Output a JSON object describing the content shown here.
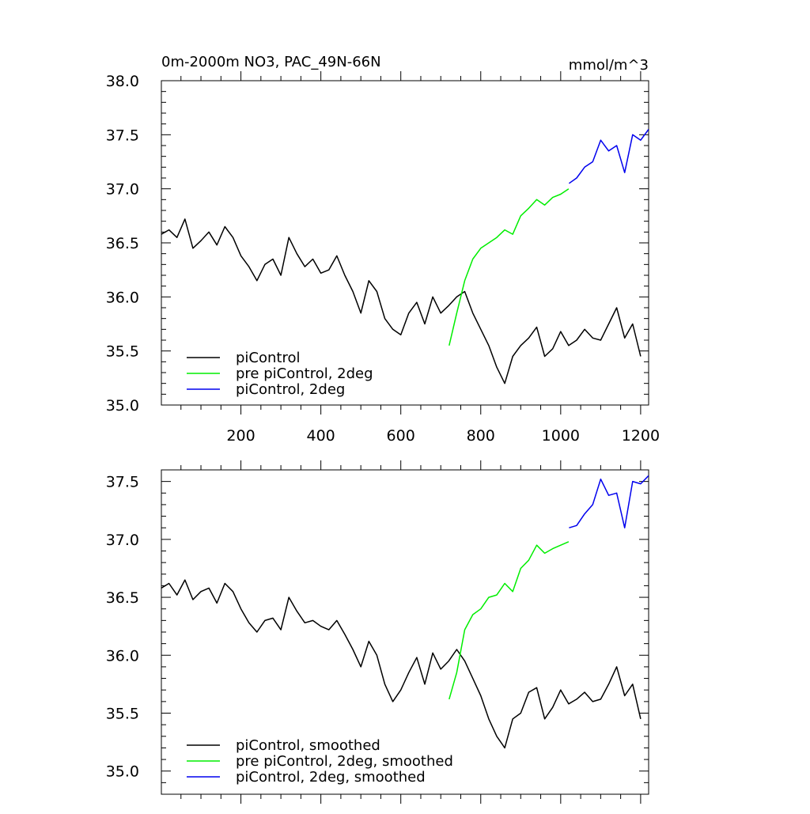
{
  "chart_data": [
    {
      "type": "line",
      "title": "0m-2000m NO3, PAC_49N-66N",
      "units": "mmol/m^3",
      "xlabel": "",
      "ylabel": "",
      "xlim": [
        1,
        1220
      ],
      "ylim": [
        35.0,
        38.0
      ],
      "xticks": [
        200,
        400,
        600,
        800,
        1000,
        1200
      ],
      "xtick_labels": [
        "200",
        "400",
        "600",
        "800",
        "1000",
        "1200"
      ],
      "yticks": [
        35.0,
        35.5,
        36.0,
        36.5,
        37.0,
        37.5,
        38.0
      ],
      "ytick_labels": [
        "35.0",
        "35.5",
        "36.0",
        "36.5",
        "37.0",
        "37.5",
        "38.0"
      ],
      "grid": false,
      "legend_position": "bottom-left",
      "series": [
        {
          "name": "piControl",
          "color": "#000000",
          "x": [
            1,
            20,
            40,
            60,
            80,
            100,
            120,
            140,
            160,
            180,
            200,
            220,
            240,
            260,
            280,
            300,
            320,
            340,
            360,
            380,
            400,
            420,
            440,
            460,
            480,
            500,
            520,
            540,
            560,
            580,
            600,
            620,
            640,
            660,
            680,
            700,
            720,
            740,
            760,
            780,
            800,
            820,
            840,
            860,
            880,
            900,
            920,
            940,
            960,
            980,
            1000,
            1020,
            1040,
            1060,
            1080,
            1100,
            1120,
            1140,
            1160,
            1180,
            1200
          ],
          "y": [
            36.58,
            36.62,
            36.55,
            36.72,
            36.45,
            36.52,
            36.6,
            36.48,
            36.65,
            36.55,
            36.38,
            36.28,
            36.15,
            36.3,
            36.35,
            36.2,
            36.55,
            36.4,
            36.28,
            36.35,
            36.22,
            36.25,
            36.38,
            36.2,
            36.05,
            35.85,
            36.15,
            36.05,
            35.8,
            35.7,
            35.65,
            35.85,
            35.95,
            35.75,
            36.0,
            35.85,
            35.92,
            36.0,
            36.05,
            35.85,
            35.7,
            35.55,
            35.35,
            35.2,
            35.45,
            35.55,
            35.62,
            35.72,
            35.45,
            35.52,
            35.68,
            35.55,
            35.6,
            35.7,
            35.62,
            35.6,
            35.75,
            35.9,
            35.62,
            35.75,
            35.45
          ]
        },
        {
          "name": "pre piControl, 2deg",
          "color": "#00ee00",
          "x": [
            721,
            740,
            760,
            780,
            800,
            820,
            840,
            860,
            880,
            900,
            920,
            940,
            960,
            980,
            1000,
            1020
          ],
          "y": [
            35.55,
            35.85,
            36.15,
            36.35,
            36.45,
            36.5,
            36.55,
            36.62,
            36.58,
            36.75,
            36.82,
            36.9,
            36.85,
            36.92,
            36.95,
            37.0
          ]
        },
        {
          "name": "piControl, 2deg",
          "color": "#0000ee",
          "x": [
            1021,
            1040,
            1060,
            1080,
            1100,
            1120,
            1140,
            1160,
            1180,
            1200,
            1220
          ],
          "y": [
            37.05,
            37.1,
            37.2,
            37.25,
            37.45,
            37.35,
            37.4,
            37.15,
            37.5,
            37.45,
            37.55
          ]
        }
      ]
    },
    {
      "type": "line",
      "title": "",
      "xlabel": "",
      "ylabel": "",
      "xlim": [
        1,
        1220
      ],
      "ylim": [
        34.8,
        37.6
      ],
      "xticks": [
        200,
        400,
        600,
        800,
        1000,
        1200
      ],
      "yticks": [
        35.0,
        35.5,
        36.0,
        36.5,
        37.0,
        37.5
      ],
      "ytick_labels": [
        "35.0",
        "35.5",
        "36.0",
        "36.5",
        "37.0",
        "37.5"
      ],
      "grid": false,
      "legend_position": "bottom-left",
      "series": [
        {
          "name": "piControl, smoothed",
          "color": "#000000",
          "x": [
            1,
            20,
            40,
            60,
            80,
            100,
            120,
            140,
            160,
            180,
            200,
            220,
            240,
            260,
            280,
            300,
            320,
            340,
            360,
            380,
            400,
            420,
            440,
            460,
            480,
            500,
            520,
            540,
            560,
            580,
            600,
            620,
            640,
            660,
            680,
            700,
            720,
            740,
            760,
            780,
            800,
            820,
            840,
            860,
            880,
            900,
            920,
            940,
            960,
            980,
            1000,
            1020,
            1040,
            1060,
            1080,
            1100,
            1120,
            1140,
            1160,
            1180,
            1200
          ],
          "y": [
            36.58,
            36.62,
            36.52,
            36.65,
            36.48,
            36.55,
            36.58,
            36.45,
            36.62,
            36.55,
            36.4,
            36.28,
            36.2,
            36.3,
            36.32,
            36.22,
            36.5,
            36.38,
            36.28,
            36.3,
            36.25,
            36.22,
            36.3,
            36.18,
            36.05,
            35.9,
            36.12,
            36.0,
            35.75,
            35.6,
            35.7,
            35.85,
            35.98,
            35.75,
            36.02,
            35.88,
            35.95,
            36.05,
            35.95,
            35.8,
            35.65,
            35.45,
            35.3,
            35.2,
            35.45,
            35.5,
            35.68,
            35.72,
            35.45,
            35.55,
            35.7,
            35.58,
            35.62,
            35.68,
            35.6,
            35.62,
            35.75,
            35.9,
            35.65,
            35.75,
            35.45
          ]
        },
        {
          "name": "pre piControl, 2deg, smoothed",
          "color": "#00ee00",
          "x": [
            721,
            740,
            760,
            780,
            800,
            820,
            840,
            860,
            880,
            900,
            920,
            940,
            960,
            980,
            1000,
            1020
          ],
          "y": [
            35.62,
            35.85,
            36.22,
            36.35,
            36.4,
            36.5,
            36.52,
            36.62,
            36.55,
            36.75,
            36.82,
            36.95,
            36.88,
            36.92,
            36.95,
            36.98
          ]
        },
        {
          "name": "piControl, 2deg, smoothed",
          "color": "#0000ee",
          "x": [
            1021,
            1040,
            1060,
            1080,
            1100,
            1120,
            1140,
            1160,
            1180,
            1200,
            1220
          ],
          "y": [
            37.1,
            37.12,
            37.22,
            37.3,
            37.52,
            37.38,
            37.4,
            37.1,
            37.5,
            37.48,
            37.55
          ]
        }
      ]
    }
  ]
}
